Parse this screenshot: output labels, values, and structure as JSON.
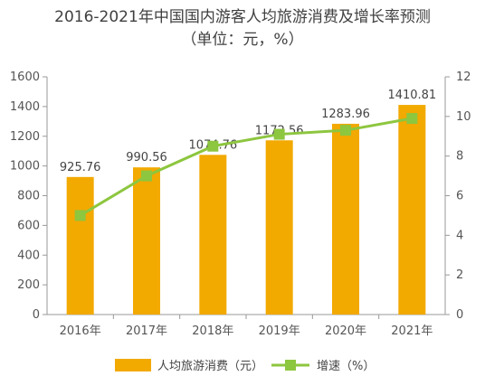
{
  "chart_data": {
    "type": "bar",
    "title": "2016-2021年中国国内游客人均旅游消费及增长率预测",
    "subtitle": "（单位：元，%）",
    "categories": [
      "2016年",
      "2017年",
      "2018年",
      "2019年",
      "2020年",
      "2021年"
    ],
    "series": [
      {
        "name": "人均旅游消费（元）",
        "type": "bar",
        "axis": "left",
        "color": "#F2A900",
        "values": [
          925.76,
          990.56,
          1074.76,
          1172.56,
          1283.96,
          1410.81
        ],
        "labels": [
          "925.76",
          "990.56",
          "1074.76",
          "1172.56",
          "1283.96",
          "1410.81"
        ]
      },
      {
        "name": "增速（%）",
        "type": "line",
        "axis": "right",
        "color": "#8DC63F",
        "values": [
          5.0,
          7.0,
          8.5,
          9.1,
          9.3,
          9.9
        ]
      }
    ],
    "ylim_left": [
      0,
      1600
    ],
    "yticks_left": [
      "0",
      "200",
      "400",
      "600",
      "800",
      "1000",
      "1200",
      "1400",
      "1600"
    ],
    "ylim_right": [
      0,
      12
    ],
    "yticks_right": [
      "0",
      "2",
      "4",
      "6",
      "8",
      "10",
      "12"
    ],
    "grid": false,
    "legend_position": "bottom"
  }
}
